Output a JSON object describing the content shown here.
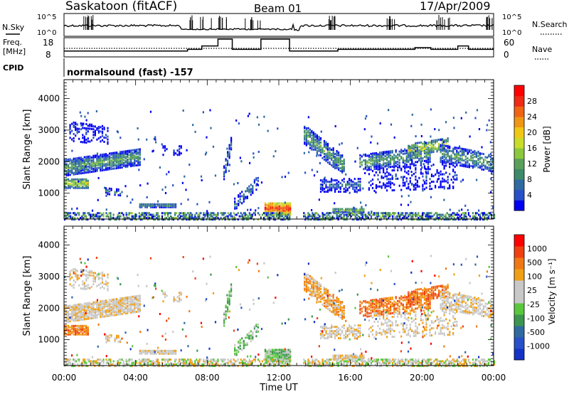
{
  "header": {
    "station": "Saskatoon (fitACF)",
    "beam": "Beam 01",
    "date": "17/Apr/2009"
  },
  "top_panels": {
    "nsky_label": "N.Sky",
    "nsky_ticks": [
      "10^5",
      "10^0"
    ],
    "nsearch_label": "N.Search",
    "nsearch_ticks": [
      "10^5",
      "10^0"
    ],
    "freq_label": "Freq.",
    "freq_unit": "[MHz]",
    "freq_ticks": [
      "18",
      "8"
    ],
    "nave_label": "Nave",
    "nave_ticks": [
      "60",
      "0"
    ],
    "cpid_label": "CPID",
    "cpid_text": "normalsound (fast) -157"
  },
  "colors": {
    "power_scale": [
      "#0000f0",
      "#2850c8",
      "#2f6aa0",
      "#3d8a6a",
      "#5aa05a",
      "#8cc83c",
      "#c8dc28",
      "#f0c814",
      "#f09614",
      "#f06414",
      "#f02a14",
      "#ff0000"
    ],
    "velocity_scale": [
      "#ff0000",
      "#f04010",
      "#f07814",
      "#f0a014",
      "#c8c8c8",
      "#c8c8c8",
      "#5ac83c",
      "#3c9650",
      "#2f6aa0",
      "#2850c8",
      "#1432c8"
    ]
  },
  "chart_data": [
    {
      "type": "heatmap",
      "title": "",
      "xlabel": "",
      "ylabel": "Slant Range [km]",
      "x_ticks": [
        "00:00",
        "04:00",
        "08:00",
        "12:00",
        "16:00",
        "20:00",
        "00:00"
      ],
      "y_ticks": [
        "1000",
        "2000",
        "3000",
        "4000"
      ],
      "ylim": [
        180,
        4600
      ],
      "colorbar_label": "Power [dB]",
      "colorbar_ticks": [
        "4",
        "8",
        "12",
        "16",
        "20",
        "24",
        "28"
      ],
      "colorbar_range": [
        0,
        30
      ]
    },
    {
      "type": "heatmap",
      "title": "",
      "xlabel": "Time UT",
      "ylabel": "Slant Range [km]",
      "x_ticks": [
        "00:00",
        "04:00",
        "08:00",
        "12:00",
        "16:00",
        "20:00",
        "00:00"
      ],
      "y_ticks": [
        "1000",
        "2000",
        "3000",
        "4000"
      ],
      "ylim": [
        180,
        4600
      ],
      "colorbar_label": "Velocity [m s⁻¹]",
      "colorbar_ticks": [
        "1000",
        "500",
        "100",
        "25",
        "-25",
        "-100",
        "-500",
        "-1000"
      ],
      "colorbar_range": [
        -1000,
        1000
      ]
    }
  ]
}
